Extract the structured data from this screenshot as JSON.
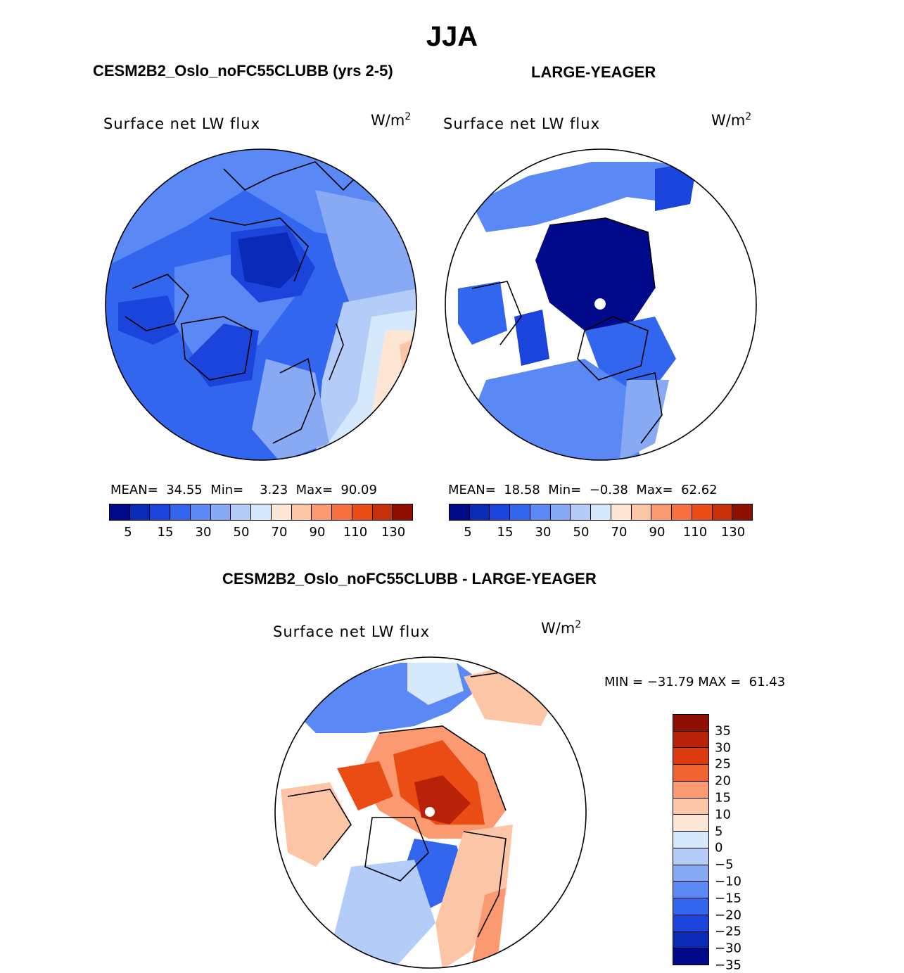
{
  "title": "JJA",
  "panels": {
    "model": {
      "title": "CESM2B2_Oslo_noFC55CLUBB (yrs 2-5)",
      "variable": "Surface net LW flux",
      "units_base": "W/m",
      "units_exp": "2",
      "stats": {
        "mean_label": "MEAN=",
        "mean": "34.55",
        "min_label": "Min=",
        "min": "3.23",
        "max_label": "Max=",
        "max": "90.09"
      }
    },
    "obs": {
      "title": "LARGE-YEAGER",
      "variable": "Surface net LW flux",
      "units_base": "W/m",
      "units_exp": "2",
      "stats": {
        "mean_label": "MEAN=",
        "mean": "18.58",
        "min_label": "Min=",
        "min": "−0.38",
        "max_label": "Max=",
        "max": "62.62"
      }
    },
    "diff": {
      "title": "CESM2B2_Oslo_noFC55CLUBB - LARGE-YEAGER",
      "variable": "Surface net LW flux",
      "units_base": "W/m",
      "units_exp": "2",
      "stats": {
        "min_label": "MIN =",
        "min": "−31.79",
        "max_label": "MAX =",
        "max": "61.43"
      }
    }
  },
  "colorbar_abs": {
    "colors": [
      "#000a8a",
      "#0a2ab8",
      "#1a44dc",
      "#3366ee",
      "#5a88f5",
      "#88aaf5",
      "#b3ccf8",
      "#d6e8fb",
      "#fde6d4",
      "#fcc6a6",
      "#fb9a70",
      "#f77040",
      "#ea4c14",
      "#c8300a",
      "#8e0f00"
    ],
    "labels": [
      "5",
      "15",
      "30",
      "50",
      "70",
      "90",
      "110",
      "130"
    ]
  },
  "colorbar_diff": {
    "colors": [
      "#8e0f00",
      "#b82208",
      "#dc3a0e",
      "#f06330",
      "#fb9a70",
      "#fcc6a6",
      "#fde6d4",
      "#d6e8fb",
      "#b3ccf8",
      "#88aaf5",
      "#5a88f5",
      "#3366ee",
      "#1a44dc",
      "#0a2ab8",
      "#000a8a"
    ],
    "labels": [
      "35",
      "30",
      "25",
      "20",
      "15",
      "10",
      "5",
      "0",
      "−5",
      "−10",
      "−15",
      "−20",
      "−25",
      "−30",
      "−35"
    ]
  },
  "map_colors": {
    "dark": "#000a8a",
    "deep": "#0a2ab8",
    "mid": "#1a44dc",
    "blue": "#3366ee",
    "light": "#5a88f5",
    "pale": "#88aaf5",
    "paler": "#b3ccf8",
    "ice": "#d6e8fb",
    "peach": "#fde6d4",
    "salmon": "#fcc6a6",
    "orange": "#fb9a70",
    "red": "#ea4c14",
    "dkred": "#b82208"
  }
}
